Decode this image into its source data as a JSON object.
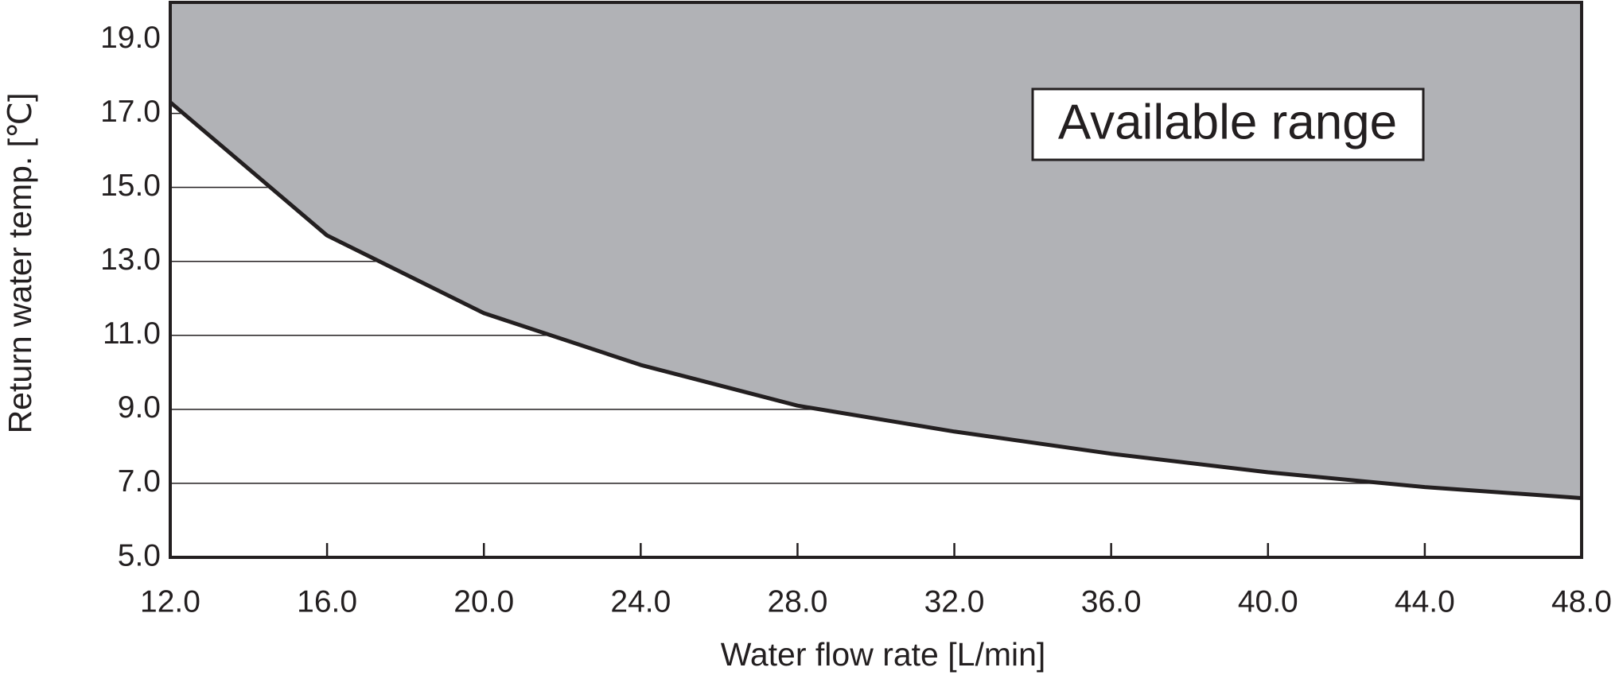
{
  "chart_data": {
    "type": "area",
    "x_label": "Water flow rate [L/min]",
    "y_label": "Return water temp. [℃]",
    "annotation": "Available range",
    "x": [
      12,
      16,
      20,
      24,
      28,
      32,
      36,
      40,
      44,
      48
    ],
    "values": [
      17.3,
      13.7,
      11.6,
      10.2,
      9.1,
      8.4,
      7.8,
      7.3,
      6.9,
      6.6
    ],
    "fill_color": "#b1b2b6",
    "line_color": "#231f20",
    "fill_side": "above",
    "xlim": [
      12,
      48
    ],
    "xticks": [
      {
        "value": 12,
        "label": "12.0"
      },
      {
        "value": 16,
        "label": "16.0"
      },
      {
        "value": 20,
        "label": "20.0"
      },
      {
        "value": 24,
        "label": "24.0"
      },
      {
        "value": 28,
        "label": "28.0"
      },
      {
        "value": 32,
        "label": "32.0"
      },
      {
        "value": 36,
        "label": "36.0"
      },
      {
        "value": 40,
        "label": "40.0"
      },
      {
        "value": 44,
        "label": "44.0"
      },
      {
        "value": 48,
        "label": "48.0"
      }
    ],
    "ylim": [
      5,
      20
    ],
    "yticks": [
      {
        "value": 5,
        "label": "5.0"
      },
      {
        "value": 7,
        "label": "7.0"
      },
      {
        "value": 9,
        "label": "9.0"
      },
      {
        "value": 11,
        "label": "11.0"
      },
      {
        "value": 13,
        "label": "13.0"
      },
      {
        "value": 15,
        "label": "15.0"
      },
      {
        "value": 17,
        "label": "17.0"
      },
      {
        "value": 19,
        "label": "19.0"
      }
    ],
    "grid": true
  }
}
